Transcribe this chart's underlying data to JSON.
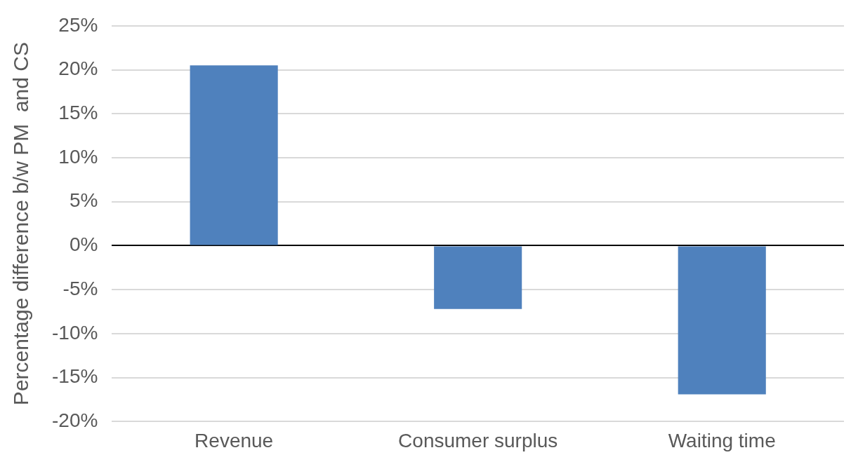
{
  "chart_data": {
    "type": "bar",
    "ylabel": "Percentage difference b/w PM  and CS",
    "categories": [
      "Revenue",
      "Consumer surplus",
      "Waiting time"
    ],
    "values": [
      20.5,
      -7.2,
      -16.9
    ],
    "color": "#4f81bd",
    "ylim": [
      -20,
      25
    ],
    "yticks": [
      {
        "value": -20,
        "label": "-20%"
      },
      {
        "value": -15,
        "label": "-15%"
      },
      {
        "value": -10,
        "label": "-10%"
      },
      {
        "value": -5,
        "label": "-5%"
      },
      {
        "value": 0,
        "label": "0%"
      },
      {
        "value": 5,
        "label": "5%"
      },
      {
        "value": 10,
        "label": "10%"
      },
      {
        "value": 15,
        "label": "15%"
      },
      {
        "value": 20,
        "label": "20%"
      },
      {
        "value": 25,
        "label": "25%"
      }
    ],
    "grid": "y",
    "legend": false
  }
}
